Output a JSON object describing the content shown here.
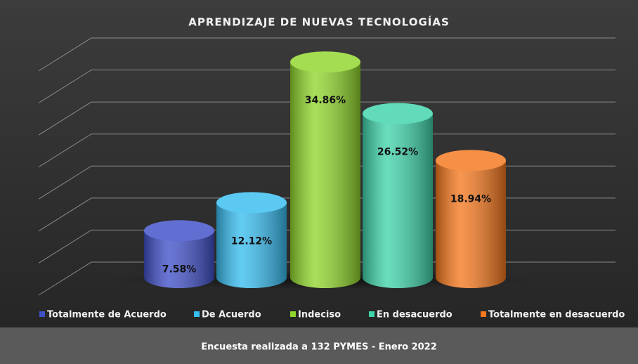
{
  "chart_data": {
    "type": "bar3d",
    "title": "APRENDIZAJE DE NUEVAS TECNOLOGÍAS",
    "categories": [
      "Totalmente de Acuerdo",
      "De Acuerdo",
      "Indeciso",
      "En desacuerdo",
      "Totalmente en desacuerdo"
    ],
    "values": [
      7.58,
      12.12,
      34.86,
      26.52,
      18.94
    ],
    "value_labels": [
      "7.58%",
      "12.12%",
      "34.86%",
      "26.52%",
      "18.94%"
    ],
    "colors": [
      "#4050c8",
      "#38bdf0",
      "#90d62c",
      "#3fd4aa",
      "#f5781e"
    ],
    "ylim": [
      0,
      35
    ],
    "yticks": [
      0,
      5,
      10,
      15,
      20,
      25,
      30,
      35
    ],
    "grid": true,
    "legend": "bottom",
    "footnote": "Encuesta realizada a 132 PYMES - Enero 2022"
  }
}
